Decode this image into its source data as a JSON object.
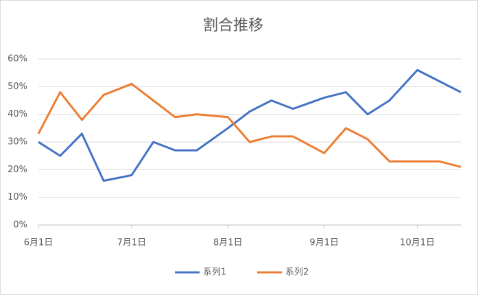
{
  "chart_data": {
    "type": "line",
    "title": "割合推移",
    "x": [
      "6/1",
      "6/8",
      "6/15",
      "6/22",
      "7/1",
      "7/8",
      "7/15",
      "7/22",
      "8/1",
      "8/8",
      "8/15",
      "8/22",
      "9/1",
      "9/8",
      "9/15",
      "9/22",
      "10/1",
      "10/8",
      "10/15"
    ],
    "series": [
      {
        "name": "系列1",
        "color": "#4472c4",
        "values": [
          30,
          25,
          33,
          16,
          18,
          30,
          27,
          27,
          35,
          41,
          45,
          42,
          46,
          48,
          40,
          45,
          56,
          52,
          48
        ]
      },
      {
        "name": "系列2",
        "color": "#ed7d31",
        "values": [
          33,
          48,
          38,
          47,
          51,
          45,
          39,
          40,
          39,
          30,
          32,
          32,
          26,
          35,
          31,
          23,
          23,
          23,
          21
        ]
      }
    ],
    "xlim": [
      "6/1",
      "10/15"
    ],
    "xticks": [
      {
        "value": "6/1",
        "label": "6月1日"
      },
      {
        "value": "7/1",
        "label": "7月1日"
      },
      {
        "value": "8/1",
        "label": "8月1日"
      },
      {
        "value": "9/1",
        "label": "9月1日"
      },
      {
        "value": "10/1",
        "label": "10月1日"
      }
    ],
    "ylim": [
      0,
      60
    ],
    "yticks": [
      {
        "value": 0,
        "label": "0%"
      },
      {
        "value": 10,
        "label": "10%"
      },
      {
        "value": 20,
        "label": "20%"
      },
      {
        "value": 30,
        "label": "30%"
      },
      {
        "value": 40,
        "label": "40%"
      },
      {
        "value": 50,
        "label": "50%"
      },
      {
        "value": 60,
        "label": "60%"
      }
    ],
    "grid": true,
    "legend": "bottom"
  }
}
